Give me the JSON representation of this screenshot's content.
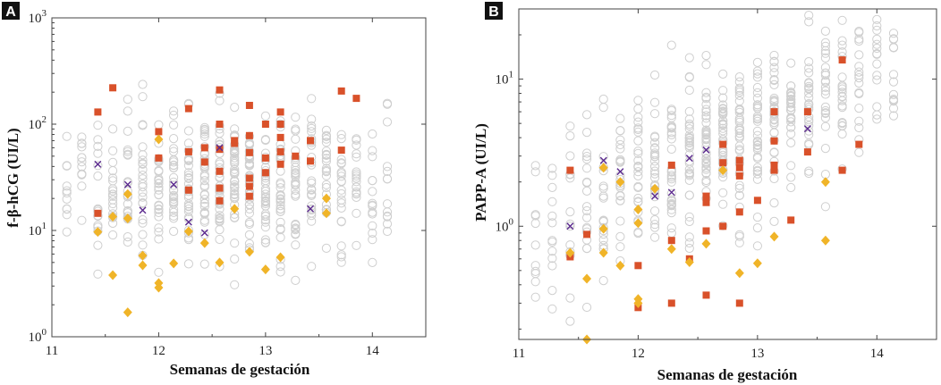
{
  "chart_data": [
    {
      "type": "scatter",
      "panel_label": "A",
      "xlabel": "Semanas de gestación",
      "ylabel": "f-β-hCG (UI/L)",
      "yscale": "log",
      "xlim": [
        11,
        14.5
      ],
      "ylim": [
        1,
        1000
      ],
      "xticks": [
        "11",
        "12",
        "13",
        "14"
      ],
      "yticks": [
        {
          "base": "10",
          "exp": "0"
        },
        {
          "base": "10",
          "exp": "1"
        },
        {
          "base": "10",
          "exp": "2"
        },
        {
          "base": "10",
          "exp": "3"
        }
      ],
      "background_seed": 11,
      "series": [
        {
          "name": "cuadrados",
          "marker": "square",
          "color": "#d9512a",
          "points": [
            [
              11.43,
              130
            ],
            [
              11.43,
              14.5
            ],
            [
              11.57,
              220
            ],
            [
              12.0,
              85
            ],
            [
              12.0,
              48
            ],
            [
              12.28,
              140
            ],
            [
              12.28,
              55
            ],
            [
              12.28,
              24
            ],
            [
              12.43,
              60
            ],
            [
              12.43,
              44
            ],
            [
              12.57,
              210
            ],
            [
              12.57,
              100
            ],
            [
              12.57,
              58
            ],
            [
              12.57,
              36
            ],
            [
              12.57,
              25
            ],
            [
              12.57,
              19
            ],
            [
              12.71,
              70
            ],
            [
              12.71,
              66
            ],
            [
              12.85,
              150
            ],
            [
              12.85,
              78
            ],
            [
              12.85,
              54
            ],
            [
              12.85,
              31
            ],
            [
              12.85,
              26
            ],
            [
              12.85,
              21
            ],
            [
              13.0,
              100
            ],
            [
              13.0,
              48
            ],
            [
              13.0,
              35
            ],
            [
              13.14,
              130
            ],
            [
              13.14,
              100
            ],
            [
              13.14,
              75
            ],
            [
              13.14,
              55
            ],
            [
              13.14,
              42
            ],
            [
              13.28,
              50
            ],
            [
              13.42,
              70
            ],
            [
              13.42,
              45
            ],
            [
              13.71,
              205
            ],
            [
              13.71,
              57
            ],
            [
              13.85,
              175
            ]
          ]
        },
        {
          "name": "rombos",
          "marker": "diamond",
          "color": "#f0b428",
          "points": [
            [
              11.43,
              9.7
            ],
            [
              11.57,
              13.5
            ],
            [
              11.57,
              3.8
            ],
            [
              11.71,
              22
            ],
            [
              11.71,
              13
            ],
            [
              11.71,
              1.7
            ],
            [
              11.85,
              5.8
            ],
            [
              11.85,
              4.7
            ],
            [
              12.0,
              72
            ],
            [
              12.0,
              3.2
            ],
            [
              12.0,
              2.9
            ],
            [
              12.14,
              4.9
            ],
            [
              12.28,
              9.8
            ],
            [
              12.43,
              7.6
            ],
            [
              12.57,
              5
            ],
            [
              12.71,
              16
            ],
            [
              12.85,
              6.3
            ],
            [
              13.0,
              4.3
            ],
            [
              13.14,
              5.6
            ],
            [
              13.57,
              20
            ],
            [
              13.57,
              14.5
            ]
          ]
        },
        {
          "name": "cruces",
          "marker": "cross",
          "color": "#5b2a8e",
          "points": [
            [
              11.43,
              42
            ],
            [
              11.71,
              27
            ],
            [
              11.85,
              15.5
            ],
            [
              12.14,
              27
            ],
            [
              12.28,
              12
            ],
            [
              12.43,
              9.5
            ],
            [
              12.57,
              60
            ],
            [
              13.42,
              16
            ]
          ]
        }
      ]
    },
    {
      "type": "scatter",
      "panel_label": "B",
      "xlabel": "Semanas de gestación",
      "ylabel": "PAPP-A (UI/L)",
      "yscale": "log",
      "xlim": [
        11,
        14.5
      ],
      "ylim": [
        0.17,
        30
      ],
      "xticks": [
        "11",
        "12",
        "13",
        "14"
      ],
      "yticks": [
        {
          "base": "10",
          "exp": "0"
        },
        {
          "base": "10",
          "exp": "1"
        }
      ],
      "background_seed": 23,
      "series": [
        {
          "name": "cuadrados",
          "marker": "square",
          "color": "#d9512a",
          "points": [
            [
              11.43,
              2.4
            ],
            [
              11.43,
              0.62
            ],
            [
              11.57,
              0.88
            ],
            [
              12.0,
              0.54
            ],
            [
              12.0,
              0.28
            ],
            [
              12.28,
              2.6
            ],
            [
              12.28,
              0.8
            ],
            [
              12.28,
              0.3
            ],
            [
              12.43,
              0.6
            ],
            [
              12.57,
              1.6
            ],
            [
              12.57,
              1.45
            ],
            [
              12.57,
              0.93
            ],
            [
              12.57,
              0.34
            ],
            [
              12.71,
              3.6
            ],
            [
              12.71,
              2.7
            ],
            [
              12.71,
              1.0
            ],
            [
              12.85,
              2.8
            ],
            [
              12.85,
              2.5
            ],
            [
              12.85,
              2.2
            ],
            [
              12.85,
              1.25
            ],
            [
              12.85,
              0.3
            ],
            [
              13.0,
              1.5
            ],
            [
              13.14,
              6.0
            ],
            [
              13.14,
              3.8
            ],
            [
              13.14,
              2.6
            ],
            [
              13.14,
              2.4
            ],
            [
              13.28,
              1.1
            ],
            [
              13.42,
              6.0
            ],
            [
              13.42,
              3.2
            ],
            [
              13.71,
              13.5
            ],
            [
              13.71,
              2.4
            ],
            [
              13.85,
              3.6
            ]
          ]
        },
        {
          "name": "rombos",
          "marker": "diamond",
          "color": "#f0b428",
          "points": [
            [
              11.43,
              0.66
            ],
            [
              11.57,
              0.44
            ],
            [
              11.57,
              0.17
            ],
            [
              11.71,
              2.5
            ],
            [
              11.71,
              0.96
            ],
            [
              11.71,
              0.66
            ],
            [
              11.85,
              2.0
            ],
            [
              11.85,
              0.54
            ],
            [
              12.0,
              1.3
            ],
            [
              12.0,
              1.05
            ],
            [
              12.0,
              0.32
            ],
            [
              12.0,
              0.3
            ],
            [
              12.14,
              1.8
            ],
            [
              12.28,
              0.7
            ],
            [
              12.43,
              0.57
            ],
            [
              12.57,
              0.76
            ],
            [
              12.71,
              2.4
            ],
            [
              12.85,
              0.48
            ],
            [
              13.0,
              0.56
            ],
            [
              13.14,
              0.85
            ],
            [
              13.57,
              2.0
            ],
            [
              13.57,
              0.8
            ]
          ]
        },
        {
          "name": "cruces",
          "marker": "cross",
          "color": "#5b2a8e",
          "points": [
            [
              11.43,
              1.0
            ],
            [
              11.71,
              2.8
            ],
            [
              11.85,
              2.35
            ],
            [
              12.14,
              1.6
            ],
            [
              12.28,
              1.7
            ],
            [
              12.43,
              2.9
            ],
            [
              12.57,
              3.3
            ],
            [
              13.42,
              4.6
            ]
          ]
        }
      ]
    }
  ]
}
